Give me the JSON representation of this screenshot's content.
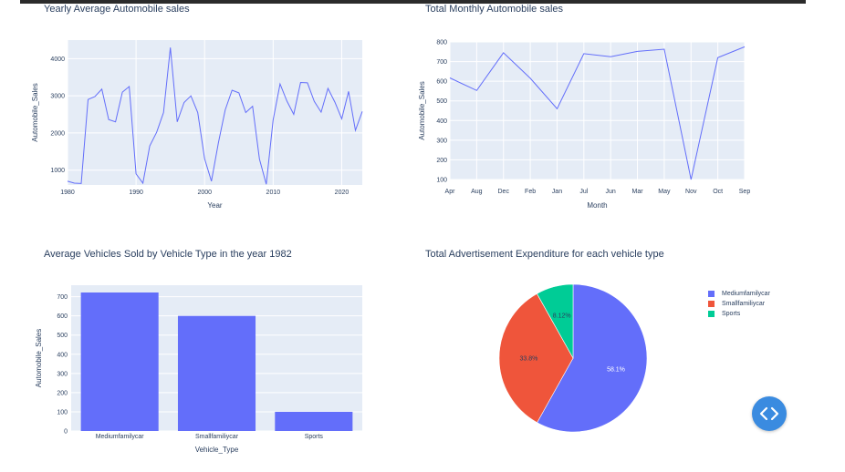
{
  "charts": {
    "yearly": {
      "chart_data": {
        "type": "line",
        "title": "Yearly Average Automobile sales",
        "xlabel": "Year",
        "ylabel": "Automobile_Sales",
        "xlim": [
          1980,
          2023
        ],
        "ylim": [
          600,
          4500
        ],
        "x_ticks": [
          "1980",
          "1990",
          "2000",
          "2010",
          "2020"
        ],
        "y_ticks": [
          "1000",
          "2000",
          "3000",
          "4000"
        ],
        "line_color": "#636efa",
        "x": [
          1980,
          1981,
          1982,
          1983,
          1984,
          1985,
          1986,
          1987,
          1988,
          1989,
          1990,
          1991,
          1992,
          1993,
          1994,
          1995,
          1996,
          1997,
          1998,
          1999,
          2000,
          2001,
          2002,
          2003,
          2004,
          2005,
          2006,
          2007,
          2008,
          2009,
          2010,
          2011,
          2012,
          2013,
          2014,
          2015,
          2016,
          2017,
          2018,
          2019,
          2020,
          2021,
          2022,
          2023
        ],
        "y": [
          700,
          650,
          640,
          2900,
          2980,
          3180,
          2360,
          2300,
          3100,
          3250,
          900,
          650,
          1650,
          2020,
          2550,
          4300,
          2300,
          2820,
          3000,
          2550,
          1310,
          700,
          1730,
          2620,
          3150,
          3080,
          2550,
          2720,
          1300,
          620,
          2350,
          3320,
          2860,
          2500,
          3360,
          3350,
          2850,
          2560,
          3200,
          2830,
          2380,
          3120,
          2070,
          2580
        ]
      }
    },
    "monthly": {
      "chart_data": {
        "type": "line",
        "title": "Total Monthly Automobile sales",
        "xlabel": "Month",
        "ylabel": "Automobile_Sales",
        "ylim": [
          100,
          800
        ],
        "y_ticks": [
          "100",
          "200",
          "300",
          "400",
          "500",
          "600",
          "700",
          "800"
        ],
        "line_color": "#636efa",
        "categories": [
          "Apr",
          "Aug",
          "Dec",
          "Feb",
          "Jan",
          "Jul",
          "Jun",
          "Mar",
          "May",
          "Nov",
          "Oct",
          "Sep"
        ],
        "values": [
          617,
          553,
          745,
          615,
          460,
          740,
          725,
          752,
          763,
          100,
          720,
          775
        ]
      }
    },
    "vehicle": {
      "chart_data": {
        "type": "bar",
        "title": "Average Vehicles Sold by Vehicle Type in the year 1982",
        "xlabel": "Vehicle_Type",
        "ylabel": "Automobile_Sales",
        "ylim": [
          0,
          760
        ],
        "y_ticks": [
          "0",
          "100",
          "200",
          "300",
          "400",
          "500",
          "600",
          "700"
        ],
        "bar_color": "#636efa",
        "categories": [
          "Mediumfamilycar",
          "Smallfamiliycar",
          "Sports"
        ],
        "values": [
          722,
          600,
          100
        ]
      }
    },
    "advert": {
      "chart_data": {
        "type": "pie",
        "title": "Total Advertisement Expenditure for each vehicle type",
        "legend": "top-right",
        "slices": [
          {
            "label": "Mediumfamilycar",
            "value": 58.1,
            "text": "58.1%",
            "color": "#636efa"
          },
          {
            "label": "Smallfamiliycar",
            "value": 33.8,
            "text": "33.8%",
            "color": "#ef553b"
          },
          {
            "label": "Sports",
            "value": 8.12,
            "text": "8.12%",
            "color": "#00cc96"
          }
        ]
      }
    }
  },
  "ui": {
    "embed_button_icon": "code-brackets-icon",
    "embed_button_color": "#3a8be0"
  }
}
